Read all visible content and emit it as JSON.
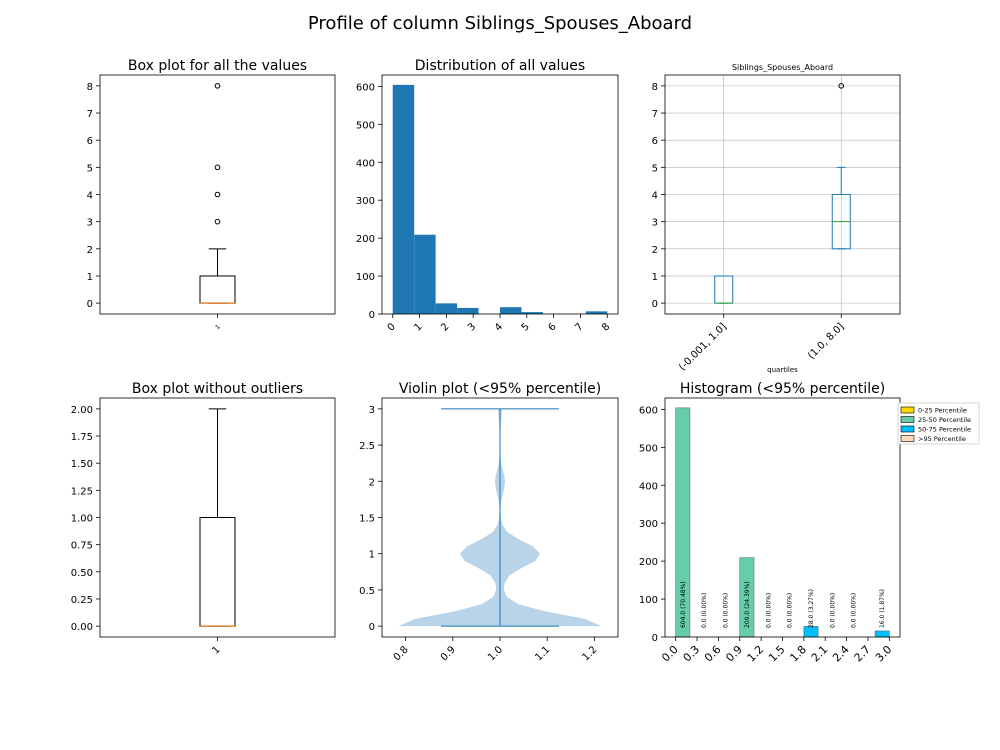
{
  "page_title": "Profile of column  Siblings_Spouses_Aboard",
  "colors": {
    "box_median": "#ff7f0e",
    "hist_bar": "#1f77b4",
    "violin_fill": "#b9d3e8",
    "violin_line": "#1f77b4",
    "grouped_box": "#1f77b4",
    "grouped_median": "#2ca02c",
    "grid": "#b0b0b0",
    "p0_25": "#ffd700",
    "p25_50": "#66cdaa",
    "p50_75": "#00bfff",
    "p95": "#ffdab9"
  },
  "chart_data": [
    {
      "id": "box_all",
      "type": "box",
      "title": "Box plot for all the values",
      "x_tick": "1",
      "ylim": [
        -0.4,
        8.4
      ],
      "yticks": [
        0,
        1,
        2,
        3,
        4,
        5,
        6,
        7,
        8
      ],
      "box": {
        "whislo": 0,
        "q1": 0,
        "median": 0,
        "q3": 1,
        "whishi": 2
      },
      "outliers": [
        3,
        4,
        5,
        8
      ]
    },
    {
      "id": "hist_all",
      "type": "bar",
      "title": "Distribution of all values",
      "xlim": [
        -0.4,
        8.4
      ],
      "xticks": [
        0,
        1,
        2,
        3,
        4,
        5,
        6,
        7,
        8
      ],
      "ylim": [
        0,
        630
      ],
      "yticks": [
        0,
        100,
        200,
        300,
        400,
        500,
        600
      ],
      "bins": [
        {
          "x0": 0.0,
          "x1": 0.8,
          "count": 604
        },
        {
          "x0": 0.8,
          "x1": 1.6,
          "count": 209
        },
        {
          "x0": 1.6,
          "x1": 2.4,
          "count": 28
        },
        {
          "x0": 2.4,
          "x1": 3.2,
          "count": 16
        },
        {
          "x0": 3.2,
          "x1": 4.0,
          "count": 0
        },
        {
          "x0": 4.0,
          "x1": 4.8,
          "count": 18
        },
        {
          "x0": 4.8,
          "x1": 5.6,
          "count": 5
        },
        {
          "x0": 5.6,
          "x1": 6.4,
          "count": 0
        },
        {
          "x0": 6.4,
          "x1": 7.2,
          "count": 0
        },
        {
          "x0": 7.2,
          "x1": 8.0,
          "count": 7
        }
      ]
    },
    {
      "id": "box_quartiles",
      "type": "box",
      "title": "Siblings_Spouses_Aboard",
      "xlabel": "quartiles",
      "grid": true,
      "ylim": [
        -0.4,
        8.4
      ],
      "yticks": [
        0,
        1,
        2,
        3,
        4,
        5,
        6,
        7,
        8
      ],
      "groups": [
        {
          "label": "(-0.001, 1.0]",
          "whislo": 0,
          "q1": 0,
          "median": 0,
          "q3": 1,
          "whishi": 1,
          "outliers": []
        },
        {
          "label": "(1.0, 8.0]",
          "whislo": 2,
          "q1": 2,
          "median": 3,
          "q3": 4,
          "whishi": 5,
          "outliers": [
            8
          ]
        }
      ]
    },
    {
      "id": "box_no_outliers",
      "type": "box",
      "title": "Box plot without outliers",
      "x_tick": "1",
      "ylim": [
        -0.1,
        2.1
      ],
      "yticks": [
        0.0,
        0.25,
        0.5,
        0.75,
        1.0,
        1.25,
        1.5,
        1.75,
        2.0
      ],
      "ytick_labels": [
        "0.00",
        "0.25",
        "0.50",
        "0.75",
        "1.00",
        "1.25",
        "1.50",
        "1.75",
        "2.00"
      ],
      "box": {
        "whislo": 0,
        "q1": 0,
        "median": 0,
        "q3": 1,
        "whishi": 2
      }
    },
    {
      "id": "violin",
      "type": "violin",
      "title": "Violin plot (<95% percentile)",
      "xlim": [
        0.75,
        1.25
      ],
      "xticks": [
        0.8,
        0.9,
        1.0,
        1.1,
        1.2
      ],
      "ylim": [
        -0.15,
        3.15
      ],
      "yticks": [
        0.0,
        0.5,
        1.0,
        1.5,
        2.0,
        2.5,
        3.0
      ],
      "ymin": 0,
      "ymax": 3,
      "cap_halfwidth": 0.125,
      "profile": [
        [
          0.0,
          0.215
        ],
        [
          0.1,
          0.18
        ],
        [
          0.2,
          0.1
        ],
        [
          0.3,
          0.04
        ],
        [
          0.4,
          0.015
        ],
        [
          0.5,
          0.008
        ],
        [
          0.6,
          0.01
        ],
        [
          0.7,
          0.02
        ],
        [
          0.8,
          0.045
        ],
        [
          0.9,
          0.075
        ],
        [
          1.0,
          0.085
        ],
        [
          1.1,
          0.07
        ],
        [
          1.2,
          0.04
        ],
        [
          1.3,
          0.015
        ],
        [
          1.4,
          0.005
        ],
        [
          1.5,
          0.002
        ],
        [
          1.6,
          0.001
        ],
        [
          1.7,
          0.002
        ],
        [
          1.8,
          0.005
        ],
        [
          1.9,
          0.009
        ],
        [
          2.0,
          0.011
        ],
        [
          2.1,
          0.008
        ],
        [
          2.2,
          0.004
        ],
        [
          2.3,
          0.0015
        ],
        [
          2.5,
          0.0008
        ],
        [
          2.7,
          0.001
        ],
        [
          2.8,
          0.002
        ],
        [
          2.9,
          0.003
        ],
        [
          3.0,
          0.004
        ]
      ]
    },
    {
      "id": "hist_p95",
      "type": "bar",
      "title": "Histogram (<95% percentile)",
      "xlim": [
        0.0,
        3.0
      ],
      "xticks": [
        0.0,
        0.3,
        0.6,
        0.9,
        1.2,
        1.5,
        1.8,
        2.1,
        2.4,
        2.7,
        3.0
      ],
      "xtick_labels": [
        "0.0",
        "0.3",
        "0.6",
        "0.9",
        "1.2",
        "1.5",
        "1.8",
        "2.1",
        "2.4",
        "2.7",
        "3.0"
      ],
      "ylim": [
        0,
        630
      ],
      "yticks": [
        0,
        100,
        200,
        300,
        400,
        500,
        600
      ],
      "bars": [
        {
          "x0": 0.0,
          "x1": 0.2,
          "count": 604,
          "label": "604.0  (70.48%)",
          "group": "p25_50"
        },
        {
          "x0": 0.3,
          "x1": 0.5,
          "count": 0,
          "label": "0.0  (0.00%)",
          "group": "p25_50"
        },
        {
          "x0": 0.6,
          "x1": 0.8,
          "count": 0,
          "label": "0.0  (0.00%)",
          "group": "p25_50"
        },
        {
          "x0": 0.9,
          "x1": 1.1,
          "count": 209,
          "label": "209.0  (24.39%)",
          "group": "p25_50"
        },
        {
          "x0": 1.2,
          "x1": 1.4,
          "count": 0,
          "label": "0.0  (0.00%)",
          "group": "p25_50"
        },
        {
          "x0": 1.5,
          "x1": 1.7,
          "count": 0,
          "label": "0.0  (0.00%)",
          "group": "p25_50"
        },
        {
          "x0": 1.8,
          "x1": 2.0,
          "count": 28,
          "label": "28.0  (3.27%)",
          "group": "p50_75"
        },
        {
          "x0": 2.1,
          "x1": 2.3,
          "count": 0,
          "label": "0.0  (0.00%)",
          "group": "p50_75"
        },
        {
          "x0": 2.4,
          "x1": 2.6,
          "count": 0,
          "label": "0.0  (0.00%)",
          "group": "p50_75"
        },
        {
          "x0": 2.8,
          "x1": 3.0,
          "count": 16,
          "label": "16.0  (1.87%)",
          "group": "p50_75"
        }
      ],
      "legend": {
        "placement": "outside-top-right",
        "entries": [
          {
            "label": "0-25 Percentile",
            "group": "p0_25"
          },
          {
            "label": "25-50 Percentile",
            "group": "p25_50"
          },
          {
            "label": "50-75 Percentile",
            "group": "p50_75"
          },
          {
            "label": ">95 Percentile",
            "group": "p95"
          }
        ]
      }
    }
  ]
}
